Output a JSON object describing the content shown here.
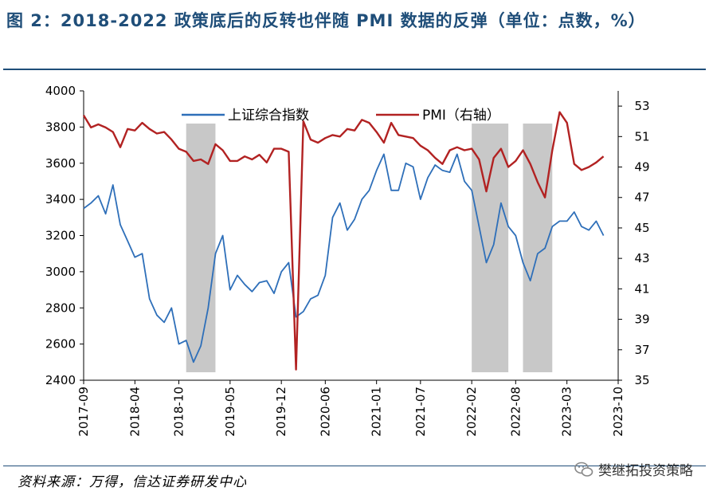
{
  "title": "图 2：2018-2022 政策底后的反转也伴随 PMI 数据的反弹（单位：点数，%）",
  "source": "资料来源：万得，信达证券研发中心",
  "watermark": "樊继拓投资策略",
  "colors": {
    "sse": "#2e6fb9",
    "pmi": "#b22222",
    "shade": "#c8c8c8",
    "title": "#1f4e79"
  },
  "chart_data": {
    "type": "line",
    "x_ticks": [
      "2017-09",
      "2018-04",
      "2018-10",
      "2019-05",
      "2019-12",
      "2020-06",
      "2021-01",
      "2021-07",
      "2022-02",
      "2022-08",
      "2023-03",
      "2023-10"
    ],
    "x_range": [
      "2017-09",
      "2023-10"
    ],
    "y_left": {
      "range": [
        2400,
        4000
      ],
      "ticks": [
        2400,
        2600,
        2800,
        3000,
        3200,
        3400,
        3600,
        3800,
        4000
      ]
    },
    "y_right": {
      "range": [
        35,
        54
      ],
      "ticks": [
        35,
        37,
        39,
        41,
        43,
        45,
        47,
        49,
        51,
        53
      ]
    },
    "shaded_periods": [
      [
        "2018-11",
        "2019-03"
      ],
      [
        "2022-02",
        "2022-07"
      ],
      [
        "2022-09",
        "2023-01"
      ]
    ],
    "series": [
      {
        "name": "上证综合指数",
        "axis": "left",
        "x": [
          "2017-09",
          "2017-10",
          "2017-11",
          "2017-12",
          "2018-01",
          "2018-02",
          "2018-03",
          "2018-04",
          "2018-05",
          "2018-06",
          "2018-07",
          "2018-08",
          "2018-09",
          "2018-10",
          "2018-11",
          "2018-12",
          "2019-01",
          "2019-02",
          "2019-03",
          "2019-04",
          "2019-05",
          "2019-06",
          "2019-07",
          "2019-08",
          "2019-09",
          "2019-10",
          "2019-11",
          "2019-12",
          "2020-01",
          "2020-02",
          "2020-03",
          "2020-04",
          "2020-05",
          "2020-06",
          "2020-07",
          "2020-08",
          "2020-09",
          "2020-10",
          "2020-11",
          "2020-12",
          "2021-01",
          "2021-02",
          "2021-03",
          "2021-04",
          "2021-05",
          "2021-06",
          "2021-07",
          "2021-08",
          "2021-09",
          "2021-10",
          "2021-11",
          "2021-12",
          "2022-01",
          "2022-02",
          "2022-03",
          "2022-04",
          "2022-05",
          "2022-06",
          "2022-07",
          "2022-08",
          "2022-09",
          "2022-10",
          "2022-11",
          "2022-12",
          "2023-01",
          "2023-02",
          "2023-03",
          "2023-04",
          "2023-05",
          "2023-06",
          "2023-07",
          "2023-08"
        ],
        "y": [
          3350,
          3380,
          3420,
          3320,
          3480,
          3260,
          3170,
          3080,
          3100,
          2850,
          2760,
          2720,
          2800,
          2600,
          2620,
          2500,
          2590,
          2800,
          3100,
          3200,
          2900,
          2980,
          2930,
          2890,
          2940,
          2950,
          2880,
          3000,
          3050,
          2750,
          2780,
          2850,
          2870,
          2980,
          3300,
          3380,
          3230,
          3290,
          3400,
          3450,
          3560,
          3650,
          3450,
          3450,
          3600,
          3580,
          3400,
          3520,
          3590,
          3560,
          3550,
          3650,
          3500,
          3450,
          3250,
          3050,
          3150,
          3380,
          3250,
          3200,
          3050,
          2950,
          3100,
          3130,
          3250,
          3280,
          3280,
          3330,
          3250,
          3230,
          3280,
          3200
        ]
      },
      {
        "name": "PMI（右轴）",
        "axis": "right",
        "x": [
          "2017-09",
          "2017-10",
          "2017-11",
          "2017-12",
          "2018-01",
          "2018-02",
          "2018-03",
          "2018-04",
          "2018-05",
          "2018-06",
          "2018-07",
          "2018-08",
          "2018-09",
          "2018-10",
          "2018-11",
          "2018-12",
          "2019-01",
          "2019-02",
          "2019-03",
          "2019-04",
          "2019-05",
          "2019-06",
          "2019-07",
          "2019-08",
          "2019-09",
          "2019-10",
          "2019-11",
          "2019-12",
          "2020-01",
          "2020-02",
          "2020-03",
          "2020-04",
          "2020-05",
          "2020-06",
          "2020-07",
          "2020-08",
          "2020-09",
          "2020-10",
          "2020-11",
          "2020-12",
          "2021-01",
          "2021-02",
          "2021-03",
          "2021-04",
          "2021-05",
          "2021-06",
          "2021-07",
          "2021-08",
          "2021-09",
          "2021-10",
          "2021-11",
          "2021-12",
          "2022-01",
          "2022-02",
          "2022-03",
          "2022-04",
          "2022-05",
          "2022-06",
          "2022-07",
          "2022-08",
          "2022-09",
          "2022-10",
          "2022-11",
          "2022-12",
          "2023-01",
          "2023-02",
          "2023-03",
          "2023-04",
          "2023-05",
          "2023-06",
          "2023-07",
          "2023-08"
        ],
        "y": [
          52.4,
          51.6,
          51.8,
          51.6,
          51.3,
          50.3,
          51.5,
          51.4,
          51.9,
          51.5,
          51.2,
          51.3,
          50.8,
          50.2,
          50.0,
          49.4,
          49.5,
          49.2,
          50.5,
          50.1,
          49.4,
          49.4,
          49.7,
          49.5,
          49.8,
          49.3,
          50.2,
          50.2,
          50.0,
          35.7,
          52.0,
          50.8,
          50.6,
          50.9,
          51.1,
          51.0,
          51.5,
          51.4,
          52.1,
          51.9,
          51.3,
          50.6,
          51.9,
          51.1,
          51.0,
          50.9,
          50.4,
          50.1,
          49.6,
          49.2,
          50.1,
          50.3,
          50.1,
          50.2,
          49.5,
          47.4,
          49.6,
          50.2,
          49.0,
          49.4,
          50.1,
          49.2,
          48.0,
          47.0,
          50.1,
          52.6,
          51.9,
          49.2,
          48.8,
          49.0,
          49.3,
          49.7
        ]
      }
    ]
  }
}
